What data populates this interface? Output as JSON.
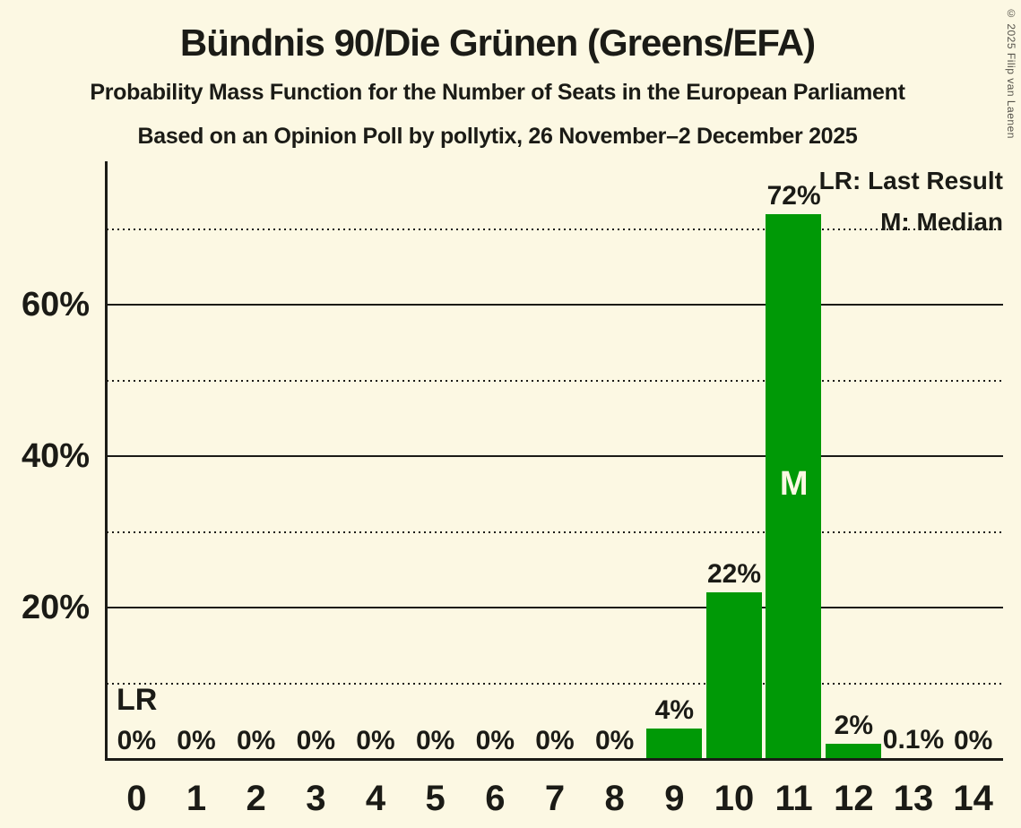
{
  "colors": {
    "background": "#FCF8E3",
    "text": "#1B1B16",
    "bar": "#009906",
    "grid": "#1B1B16",
    "median_letter": "#FCF8E3",
    "copyright_text": "#55524A"
  },
  "copyright": "© 2025 Filip van Laenen",
  "chart_data": {
    "type": "bar",
    "title": "Bündnis 90/Die Grünen (Greens/EFA)",
    "subtitle": "Probability Mass Function for the Number of Seats in the European Parliament",
    "source_line": "Based on an Opinion Poll by pollytix, 26 November–2 December 2025",
    "categories": [
      0,
      1,
      2,
      3,
      4,
      5,
      6,
      7,
      8,
      9,
      10,
      11,
      12,
      13,
      14
    ],
    "values": [
      0,
      0,
      0,
      0,
      0,
      0,
      0,
      0,
      0,
      4,
      22,
      72,
      2,
      0.1,
      0
    ],
    "value_labels": [
      "0%",
      "0%",
      "0%",
      "0%",
      "0%",
      "0%",
      "0%",
      "0%",
      "0%",
      "4%",
      "22%",
      "72%",
      "2%",
      "0.1%",
      "0%"
    ],
    "ytick_labels": [
      "20%",
      "40%",
      "60%"
    ],
    "ytick_pcts": [
      20,
      40,
      60
    ],
    "solid_gridlines_pct": [
      20,
      40,
      60
    ],
    "dotted_gridlines_pct": [
      10,
      30,
      50,
      70
    ],
    "ylim": [
      0,
      79
    ],
    "grid": "on",
    "legend_position": "top-right",
    "legend": [
      "LR: Last Result",
      "M: Median"
    ],
    "annotations": {
      "last_result": "LR",
      "median": "M"
    },
    "median_seat": 11,
    "last_result_line_pct": 10
  }
}
